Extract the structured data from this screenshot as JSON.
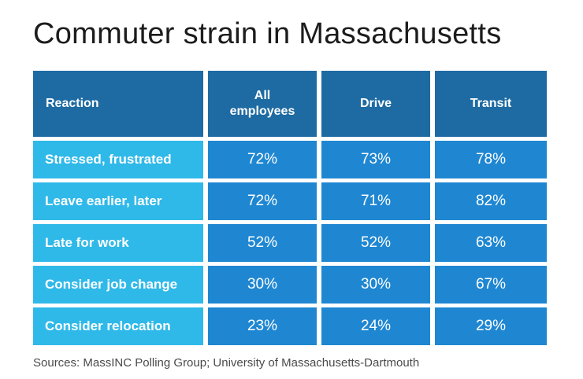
{
  "title": "Commuter strain in Massachusetts",
  "source": "Sources: MassINC Polling Group; University of Massachusetts-Dartmouth",
  "colors": {
    "header_blue": "#1e6ba3",
    "row_label_cyan": "#2fb9e9",
    "value_blue": "#1f87d2",
    "title_text": "#1c1c1c",
    "source_text": "#4a4a4a",
    "cell_text": "#ffffff",
    "background": "#ffffff"
  },
  "table": {
    "columns": [
      "Reaction",
      "All employees",
      "Drive",
      "Transit"
    ],
    "rows": [
      {
        "label": "Stressed, frustrated",
        "values": [
          "72%",
          "73%",
          "78%"
        ]
      },
      {
        "label": "Leave earlier, later",
        "values": [
          "72%",
          "71%",
          "82%"
        ]
      },
      {
        "label": "Late for work",
        "values": [
          "52%",
          "52%",
          "63%"
        ]
      },
      {
        "label": "Consider job change",
        "values": [
          "30%",
          "30%",
          "67%"
        ]
      },
      {
        "label": "Consider relocation",
        "values": [
          "23%",
          "24%",
          "29%"
        ]
      }
    ]
  },
  "chart_data": {
    "type": "table",
    "title": "Commuter strain in Massachusetts",
    "columns": [
      "Reaction",
      "All employees",
      "Drive",
      "Transit"
    ],
    "categories": [
      "Stressed, frustrated",
      "Leave earlier, later",
      "Late for work",
      "Consider job change",
      "Consider relocation"
    ],
    "series": [
      {
        "name": "All employees",
        "values": [
          72,
          72,
          52,
          30,
          23
        ]
      },
      {
        "name": "Drive",
        "values": [
          73,
          71,
          52,
          30,
          24
        ]
      },
      {
        "name": "Transit",
        "values": [
          78,
          82,
          63,
          67,
          29
        ]
      }
    ],
    "unit": "%",
    "source": "Sources: MassINC Polling Group; University of Massachusetts-Dartmouth"
  }
}
